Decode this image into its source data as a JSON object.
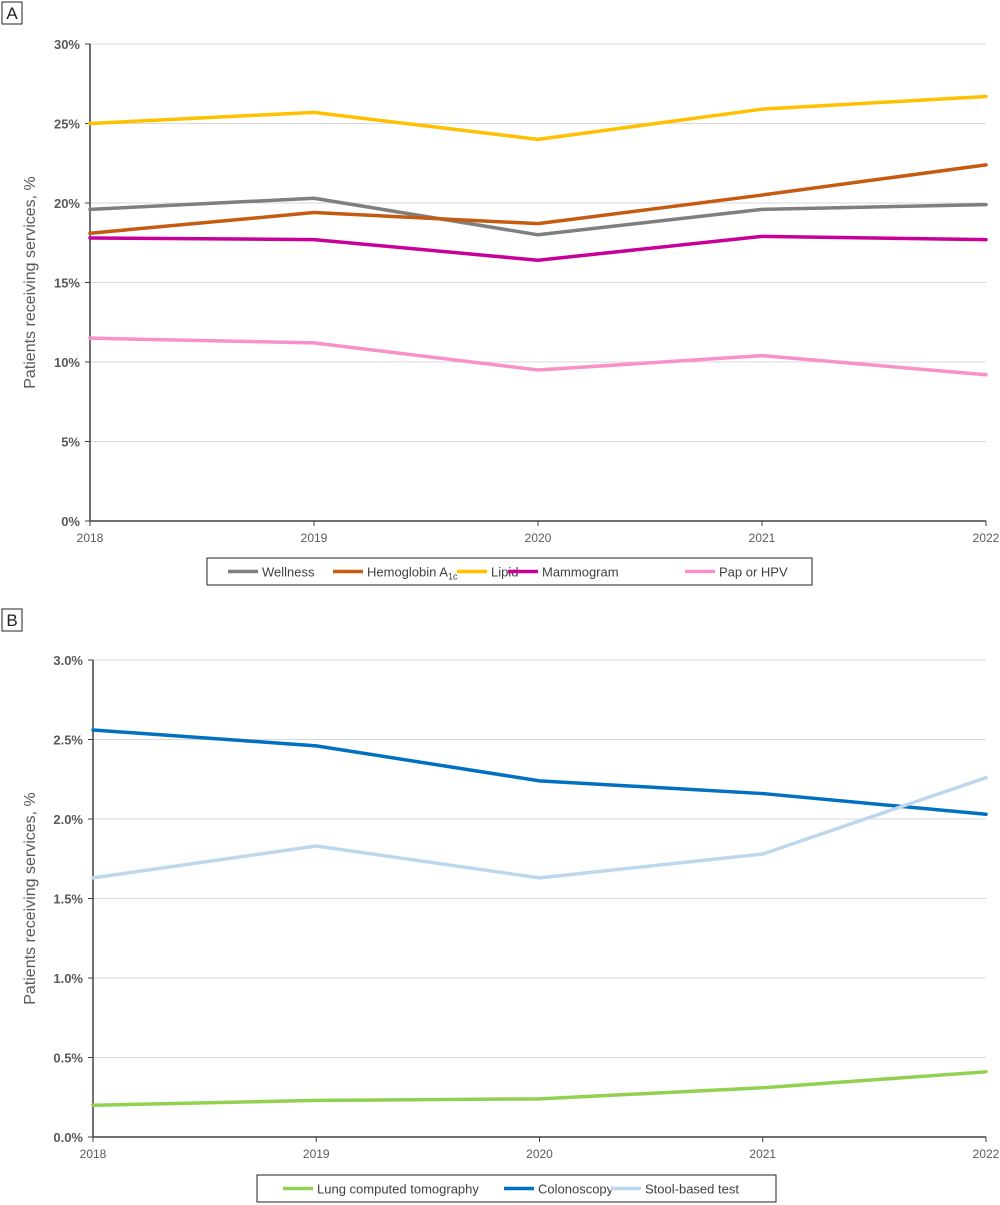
{
  "chart_data": [
    {
      "type": "line",
      "panel_label": "A",
      "ylabel": "Patients receiving services, %",
      "xlabel": "",
      "x": [
        2018,
        2019,
        2020,
        2021,
        2022
      ],
      "ylim": [
        0,
        30
      ],
      "yticks": [
        0,
        5,
        10,
        15,
        20,
        25,
        30
      ],
      "ytick_format": "0%",
      "grid": true,
      "legend_placement": "bottom",
      "series": [
        {
          "name": "Wellness",
          "color": "#7f7f7f",
          "values": [
            19.6,
            20.3,
            18.0,
            19.6,
            19.9
          ]
        },
        {
          "name": "Hemoglobin A1c",
          "color": "#c55a11",
          "values": [
            18.1,
            19.4,
            18.7,
            20.5,
            22.4
          ]
        },
        {
          "name": "Lipid",
          "color": "#ffc000",
          "values": [
            25.0,
            25.7,
            24.0,
            25.9,
            26.7
          ]
        },
        {
          "name": "Mammogram",
          "color": "#c8009a",
          "values": [
            17.8,
            17.7,
            16.4,
            17.9,
            17.7
          ]
        },
        {
          "name": "Pap or HPV",
          "color": "#f990c8",
          "values": [
            11.5,
            11.2,
            9.5,
            10.4,
            9.2
          ]
        }
      ]
    },
    {
      "type": "line",
      "panel_label": "B",
      "ylabel": "Patients receiving services, %",
      "xlabel": "",
      "x": [
        2018,
        2019,
        2020,
        2021,
        2022
      ],
      "ylim": [
        0,
        3.0
      ],
      "yticks": [
        0,
        0.5,
        1.0,
        1.5,
        2.0,
        2.5,
        3.0
      ],
      "ytick_format": "0.0%",
      "grid": true,
      "legend_placement": "bottom",
      "series": [
        {
          "name": "Lung computed tomography",
          "color": "#92d050",
          "values": [
            0.2,
            0.23,
            0.24,
            0.31,
            0.41
          ]
        },
        {
          "name": "Colonoscopy",
          "color": "#0070c0",
          "values": [
            2.56,
            2.46,
            2.24,
            2.16,
            2.03
          ]
        },
        {
          "name": "Stool-based test",
          "color": "#bdd7ee",
          "values": [
            1.63,
            1.83,
            1.63,
            1.78,
            2.26
          ]
        }
      ]
    }
  ]
}
